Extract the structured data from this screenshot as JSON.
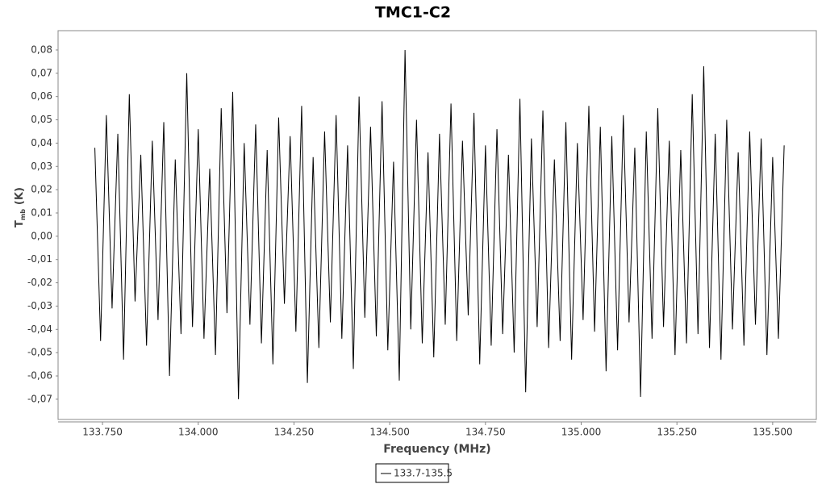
{
  "chart_data": {
    "type": "line",
    "title": "TMC1-C2",
    "xlabel": "Frequency (MHz)",
    "ylabel": {
      "main": "T",
      "sub": "mb",
      "unit": "(K)"
    },
    "xlim": [
      133.634,
      135.614
    ],
    "ylim": [
      -0.0787,
      0.0883
    ],
    "xticks": [
      {
        "value": 133.75,
        "label": "133.750"
      },
      {
        "value": 134.0,
        "label": "134.000"
      },
      {
        "value": 134.25,
        "label": "134.250"
      },
      {
        "value": 134.5,
        "label": "134.500"
      },
      {
        "value": 134.75,
        "label": "134.750"
      },
      {
        "value": 135.0,
        "label": "135.000"
      },
      {
        "value": 135.25,
        "label": "135.250"
      },
      {
        "value": 135.5,
        "label": "135.500"
      }
    ],
    "yticks": [
      {
        "value": 0.08,
        "label": "0,08"
      },
      {
        "value": 0.07,
        "label": "0,07"
      },
      {
        "value": 0.06,
        "label": "0,06"
      },
      {
        "value": 0.05,
        "label": "0,05"
      },
      {
        "value": 0.04,
        "label": "0,04"
      },
      {
        "value": 0.03,
        "label": "0,03"
      },
      {
        "value": 0.02,
        "label": "0,02"
      },
      {
        "value": 0.01,
        "label": "0,01"
      },
      {
        "value": 0,
        "label": "0,00"
      },
      {
        "value": -0.01,
        "label": "-0,01"
      },
      {
        "value": -0.02,
        "label": "-0,02"
      },
      {
        "value": -0.03,
        "label": "-0,03"
      },
      {
        "value": -0.04,
        "label": "-0,04"
      },
      {
        "value": -0.05,
        "label": "-0,05"
      },
      {
        "value": -0.06,
        "label": "-0,06"
      },
      {
        "value": -0.07,
        "label": "-0,07"
      }
    ],
    "x": [
      133.73,
      133.745,
      133.76,
      133.775,
      133.79,
      133.805,
      133.82,
      133.835,
      133.85,
      133.865,
      133.88,
      133.895,
      133.91,
      133.925,
      133.94,
      133.955,
      133.97,
      133.985,
      134.0,
      134.015,
      134.03,
      134.045,
      134.06,
      134.075,
      134.09,
      134.105,
      134.12,
      134.135,
      134.15,
      134.165,
      134.18,
      134.195,
      134.21,
      134.225,
      134.24,
      134.255,
      134.27,
      134.285,
      134.3,
      134.315,
      134.33,
      134.345,
      134.36,
      134.375,
      134.39,
      134.405,
      134.42,
      134.435,
      134.45,
      134.465,
      134.48,
      134.495,
      134.51,
      134.525,
      134.54,
      134.555,
      134.57,
      134.585,
      134.6,
      134.615,
      134.63,
      134.645,
      134.66,
      134.675,
      134.69,
      134.705,
      134.72,
      134.735,
      134.75,
      134.765,
      134.78,
      134.795,
      134.81,
      134.825,
      134.84,
      134.855,
      134.87,
      134.885,
      134.9,
      134.915,
      134.93,
      134.945,
      134.96,
      134.975,
      134.99,
      135.005,
      135.02,
      135.035,
      135.05,
      135.065,
      135.08,
      135.095,
      135.11,
      135.125,
      135.14,
      135.155,
      135.17,
      135.185,
      135.2,
      135.215,
      135.23,
      135.245,
      135.26,
      135.275,
      135.29,
      135.305,
      135.32,
      135.335,
      135.35,
      135.365,
      135.38,
      135.395,
      135.41,
      135.425,
      135.44,
      135.455,
      135.47,
      135.485,
      135.5,
      135.515,
      135.53
    ],
    "series": [
      {
        "name": "133.7-135.5",
        "color": "#000000",
        "values": [
          0.038,
          -0.045,
          0.052,
          -0.031,
          0.044,
          -0.053,
          0.061,
          -0.028,
          0.035,
          -0.047,
          0.041,
          -0.036,
          0.049,
          -0.06,
          0.033,
          -0.042,
          0.07,
          -0.039,
          0.046,
          -0.044,
          0.029,
          -0.051,
          0.055,
          -0.033,
          0.062,
          -0.07,
          0.04,
          -0.038,
          0.048,
          -0.046,
          0.037,
          -0.055,
          0.051,
          -0.029,
          0.043,
          -0.041,
          0.056,
          -0.063,
          0.034,
          -0.048,
          0.045,
          -0.037,
          0.052,
          -0.044,
          0.039,
          -0.057,
          0.06,
          -0.035,
          0.047,
          -0.043,
          0.058,
          -0.049,
          0.032,
          -0.062,
          0.08,
          -0.04,
          0.05,
          -0.046,
          0.036,
          -0.052,
          0.044,
          -0.038,
          0.057,
          -0.045,
          0.041,
          -0.034,
          0.053,
          -0.055,
          0.039,
          -0.047,
          0.046,
          -0.042,
          0.035,
          -0.05,
          0.059,
          -0.067,
          0.042,
          -0.039,
          0.054,
          -0.048,
          0.033,
          -0.045,
          0.049,
          -0.053,
          0.04,
          -0.036,
          0.056,
          -0.041,
          0.047,
          -0.058,
          0.043,
          -0.049,
          0.052,
          -0.037,
          0.038,
          -0.069,
          0.045,
          -0.044,
          0.055,
          -0.039,
          0.041,
          -0.051,
          0.037,
          -0.046,
          0.061,
          -0.042,
          0.073,
          -0.048,
          0.044,
          -0.053,
          0.05,
          -0.04,
          0.036,
          -0.047,
          0.045,
          -0.038,
          0.042,
          -0.051,
          0.034,
          -0.044,
          0.039
        ]
      }
    ]
  }
}
